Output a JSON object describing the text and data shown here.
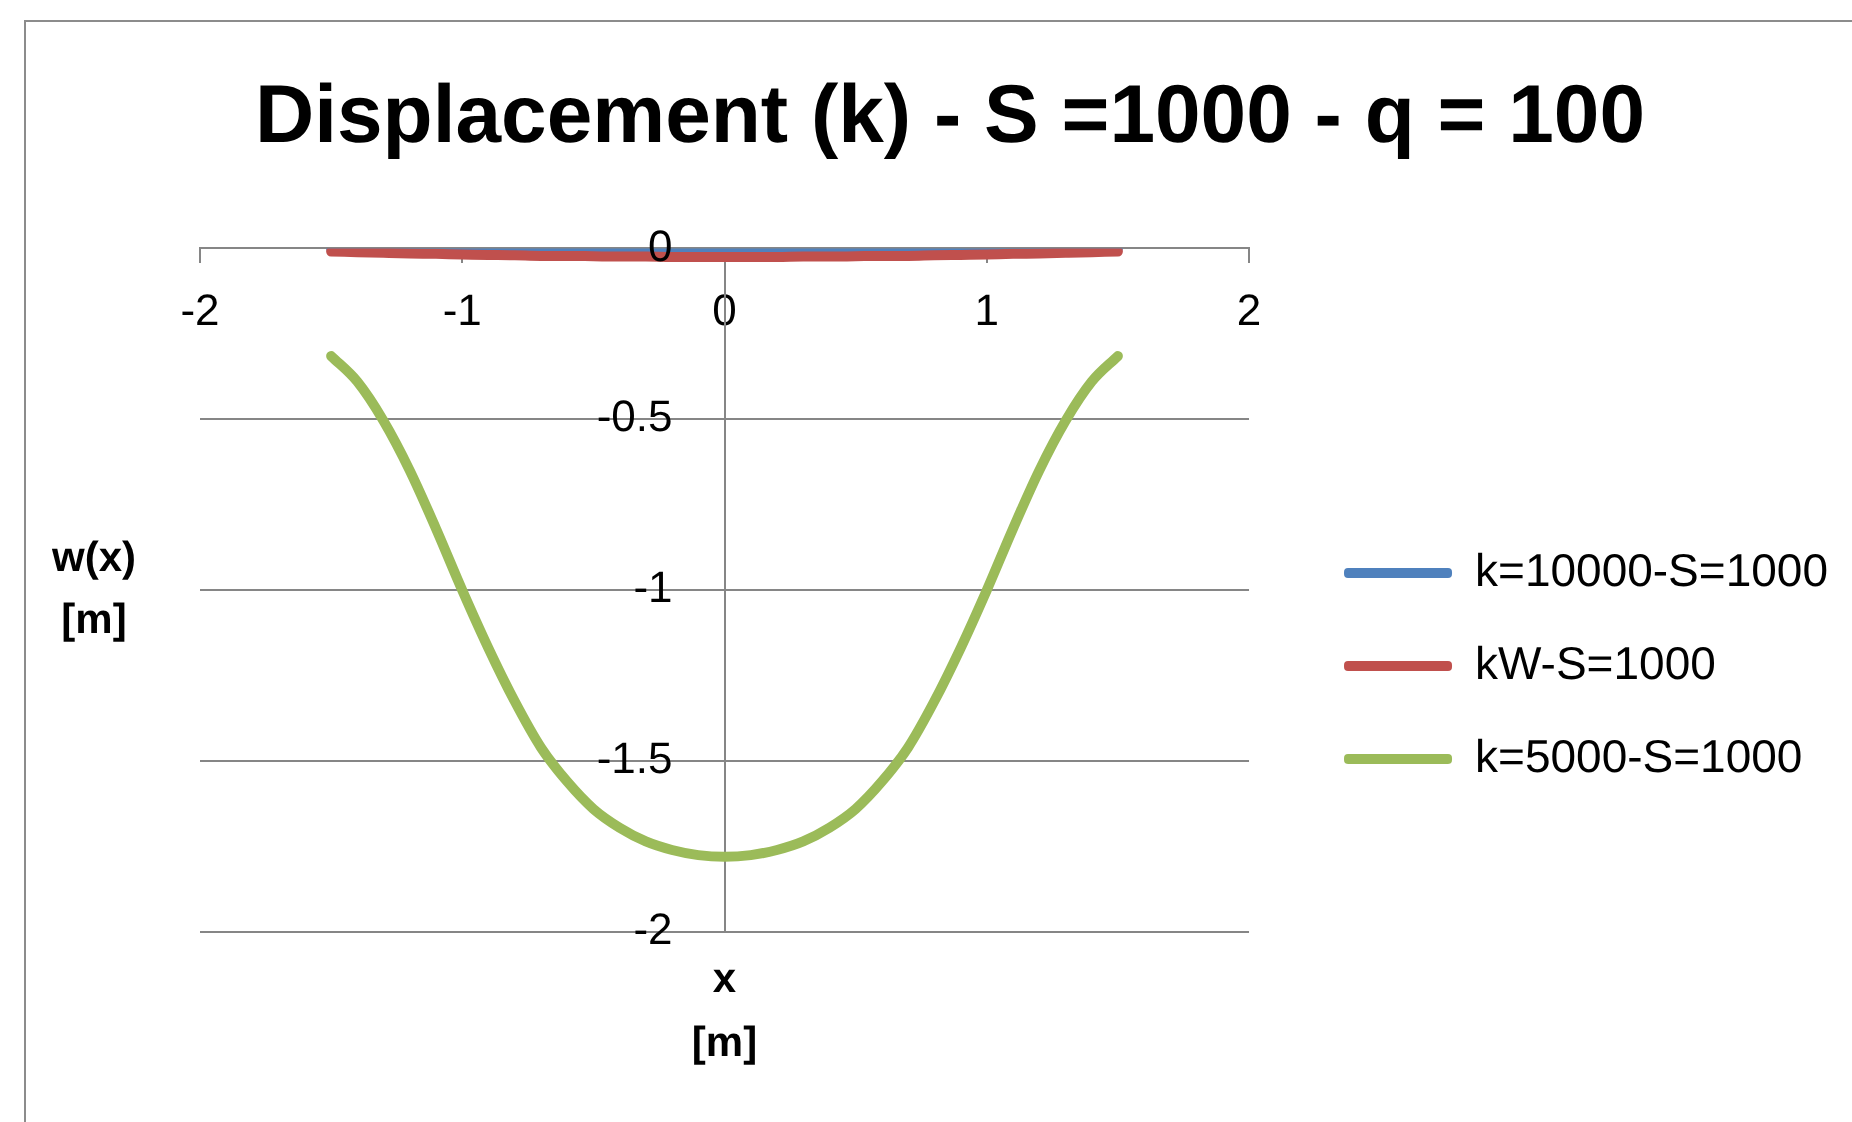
{
  "chart_data": {
    "type": "line",
    "title": "Displacement (k) - S =1000 - q = 100",
    "xlabel": "x [m]",
    "ylabel": "w(x) [m]",
    "x": [
      -1.5,
      -1.4,
      -1.3,
      -1.2,
      -1.1,
      -1,
      -0.9,
      -0.8,
      -0.7,
      -0.6,
      -0.5,
      -0.4,
      -0.3,
      -0.2,
      -0.1,
      0,
      0.1,
      0.2,
      0.3,
      0.4,
      0.5,
      0.6,
      0.7,
      0.8,
      0.9,
      1,
      1.1,
      1.2,
      1.3,
      1.4,
      1.5
    ],
    "series": [
      {
        "name": "k=10000-S=1000",
        "color": "#4f81bd",
        "values": [
          0,
          0,
          0,
          0,
          0,
          0,
          0,
          0,
          0,
          0,
          0,
          0,
          0,
          0,
          0,
          0,
          0,
          0,
          0,
          0,
          0,
          0,
          0,
          0,
          0,
          0,
          0,
          0,
          0,
          0,
          0
        ]
      },
      {
        "name": "kW-S=1000",
        "color": "#c0504d",
        "values": [
          -0.009,
          -0.011,
          -0.013,
          -0.015,
          -0.016,
          -0.018,
          -0.019,
          -0.02,
          -0.022,
          -0.022,
          -0.023,
          -0.024,
          -0.024,
          -0.025,
          -0.025,
          -0.025,
          -0.025,
          -0.025,
          -0.024,
          -0.024,
          -0.023,
          -0.022,
          -0.022,
          -0.02,
          -0.019,
          -0.018,
          -0.016,
          -0.015,
          -0.013,
          -0.011,
          -0.009
        ]
      },
      {
        "name": "k=5000-S=1000",
        "color": "#9bbb59",
        "values": [
          -0.315,
          -0.39,
          -0.505,
          -0.65,
          -0.82,
          -1,
          -1.17,
          -1.325,
          -1.46,
          -1.56,
          -1.64,
          -1.695,
          -1.735,
          -1.76,
          -1.775,
          -1.78,
          -1.775,
          -1.76,
          -1.735,
          -1.695,
          -1.64,
          -1.56,
          -1.46,
          -1.325,
          -1.17,
          -1,
          -0.82,
          -0.65,
          -0.505,
          -0.39,
          -0.315
        ]
      }
    ],
    "xlim": [
      -2,
      2
    ],
    "ylim": [
      -2,
      0
    ],
    "xticks": [
      -2,
      -1,
      0,
      1,
      2
    ],
    "yticks": [
      -2,
      -1.5,
      -1,
      -0.5,
      0
    ],
    "grid": "y",
    "legend": "right",
    "marker": "none",
    "line_style": "solid"
  }
}
